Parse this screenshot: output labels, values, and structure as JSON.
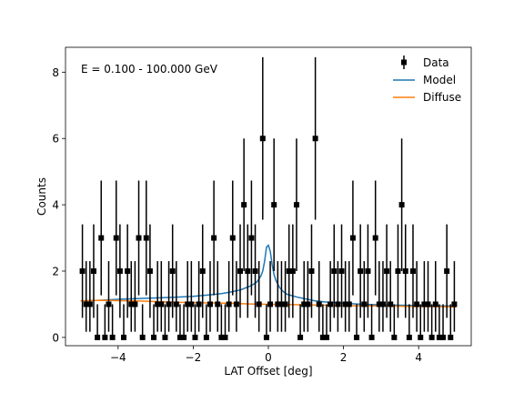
{
  "chart_data": {
    "type": "scatter",
    "xlabel": "LAT Offset [deg]",
    "ylabel": "Counts",
    "annotation": "E = 0.100 - 100.000 GeV",
    "xlim": [
      -5.4,
      5.4
    ],
    "ylim": [
      -0.25,
      8.75
    ],
    "xticks": [
      -4,
      -2,
      0,
      2,
      4
    ],
    "xtick_labels": [
      "−4",
      "−2",
      "0",
      "2",
      "4"
    ],
    "yticks": [
      0,
      2,
      4,
      6,
      8
    ],
    "ytick_labels": [
      "0",
      "2",
      "4",
      "6",
      "8"
    ],
    "legend_position": "top-right",
    "legend": [
      {
        "name": "Data",
        "marker": "errorbar-square",
        "color": "#000000"
      },
      {
        "name": "Model",
        "marker": "line",
        "color": "#1f77b4"
      },
      {
        "name": "Diffuse",
        "marker": "line",
        "color": "#ff7f0e"
      }
    ],
    "series": [
      {
        "name": "Data",
        "x": [
          -4.95,
          -4.85,
          -4.75,
          -4.65,
          -4.55,
          -4.45,
          -4.35,
          -4.25,
          -4.15,
          -4.05,
          -3.95,
          -3.85,
          -3.75,
          -3.65,
          -3.55,
          -3.45,
          -3.35,
          -3.25,
          -3.15,
          -3.05,
          -2.95,
          -2.85,
          -2.75,
          -2.65,
          -2.55,
          -2.45,
          -2.35,
          -2.25,
          -2.15,
          -2.05,
          -1.95,
          -1.85,
          -1.75,
          -1.65,
          -1.55,
          -1.45,
          -1.35,
          -1.25,
          -1.15,
          -1.05,
          -0.95,
          -0.85,
          -0.75,
          -0.65,
          -0.55,
          -0.45,
          -0.35,
          -0.25,
          -0.15,
          -0.05,
          0.05,
          0.15,
          0.25,
          0.35,
          0.45,
          0.55,
          0.65,
          0.75,
          0.85,
          0.95,
          1.05,
          1.15,
          1.25,
          1.35,
          1.45,
          1.55,
          1.65,
          1.75,
          1.85,
          1.95,
          2.05,
          2.15,
          2.25,
          2.35,
          2.45,
          2.55,
          2.65,
          2.75,
          2.85,
          2.95,
          3.05,
          3.15,
          3.25,
          3.35,
          3.45,
          3.55,
          3.65,
          3.75,
          3.85,
          3.95,
          4.05,
          4.15,
          4.25,
          4.35,
          4.45,
          4.55,
          4.65,
          4.75,
          4.85,
          4.95
        ],
        "values": [
          2,
          1,
          1,
          2,
          0,
          3,
          0,
          1,
          0,
          3,
          2,
          0,
          2,
          1,
          1,
          3,
          0,
          3,
          2,
          0,
          1,
          1,
          0,
          1,
          2,
          1,
          0,
          0,
          1,
          1,
          0,
          1,
          2,
          0,
          1,
          3,
          1,
          0,
          0,
          1,
          3,
          1,
          2,
          4,
          2,
          3,
          2,
          1,
          6,
          0,
          1,
          4,
          1,
          1,
          1,
          2,
          2,
          4,
          0,
          1,
          1,
          2,
          6,
          1,
          0,
          0,
          1,
          2,
          1,
          2,
          1,
          1,
          3,
          0,
          2,
          1,
          2,
          0,
          3,
          1,
          1,
          2,
          1,
          0,
          2,
          4,
          2,
          0,
          2,
          1,
          0,
          1,
          1,
          0,
          1,
          0,
          0,
          2,
          0,
          1
        ],
        "err_lo": [
          1.41,
          0.83,
          0.83,
          1.41,
          0,
          1.73,
          0,
          0.83,
          0,
          1.73,
          1.41,
          0,
          1.41,
          0.83,
          0.83,
          1.73,
          0,
          1.73,
          1.41,
          0,
          0.83,
          0.83,
          0,
          0.83,
          1.41,
          0.83,
          0,
          0,
          0.83,
          0.83,
          0,
          0.83,
          1.41,
          0,
          0.83,
          1.73,
          0.83,
          0,
          0,
          0.83,
          1.73,
          0.83,
          1.41,
          2,
          1.41,
          1.73,
          1.41,
          0.83,
          2.45,
          0,
          0.83,
          2,
          0.83,
          0.83,
          0.83,
          1.41,
          1.41,
          2,
          0,
          0.83,
          0.83,
          1.41,
          2.45,
          0.83,
          0,
          0,
          0.83,
          1.41,
          0.83,
          1.41,
          0.83,
          0.83,
          1.73,
          0,
          1.41,
          0.83,
          1.41,
          0,
          1.73,
          0.83,
          0.83,
          1.41,
          0.83,
          0,
          1.41,
          2,
          1.41,
          0,
          1.41,
          0.83,
          0,
          0.83,
          0.83,
          0,
          0.83,
          0,
          0,
          1.41,
          0,
          0.83
        ],
        "err_hi": [
          1.41,
          1.3,
          1.3,
          1.41,
          1.0,
          1.73,
          1.0,
          1.3,
          1.0,
          1.73,
          1.41,
          1.0,
          1.41,
          1.3,
          1.3,
          1.73,
          1.0,
          1.73,
          1.41,
          1.0,
          1.3,
          1.3,
          1.0,
          1.3,
          1.41,
          1.3,
          1.0,
          1.0,
          1.3,
          1.3,
          1.0,
          1.3,
          1.41,
          1.0,
          1.3,
          1.73,
          1.3,
          1.0,
          1.0,
          1.3,
          1.73,
          1.3,
          1.41,
          2,
          1.41,
          1.73,
          1.41,
          1.3,
          2.45,
          1.0,
          1.3,
          2,
          1.3,
          1.3,
          1.3,
          1.41,
          1.41,
          2,
          1.0,
          1.3,
          1.3,
          1.41,
          2.45,
          1.3,
          1.0,
          1.0,
          1.3,
          1.41,
          1.3,
          1.41,
          1.3,
          1.3,
          1.73,
          1.0,
          1.41,
          1.3,
          1.41,
          1.0,
          1.73,
          1.3,
          1.3,
          1.41,
          1.3,
          1.0,
          1.41,
          2,
          1.41,
          1.0,
          1.41,
          1.3,
          1.0,
          1.3,
          1.3,
          1.0,
          1.3,
          1.0,
          1.0,
          1.41,
          1.0,
          1.3
        ]
      },
      {
        "name": "Model",
        "x": [
          -5.0,
          -4.5,
          -4.0,
          -3.5,
          -3.0,
          -2.5,
          -2.0,
          -1.5,
          -1.25,
          -1.0,
          -0.75,
          -0.5,
          -0.4,
          -0.3,
          -0.2,
          -0.15,
          -0.1,
          -0.05,
          0.0,
          0.05,
          0.1,
          0.15,
          0.2,
          0.3,
          0.4,
          0.5,
          0.75,
          1.0,
          1.25,
          1.5,
          2.0,
          2.5,
          3.0,
          3.5,
          4.0,
          4.5,
          5.0
        ],
        "values": [
          1.1,
          1.12,
          1.15,
          1.17,
          1.19,
          1.21,
          1.24,
          1.29,
          1.32,
          1.37,
          1.43,
          1.54,
          1.6,
          1.68,
          1.85,
          2.0,
          2.3,
          2.72,
          2.78,
          2.6,
          2.2,
          1.9,
          1.72,
          1.5,
          1.38,
          1.3,
          1.22,
          1.16,
          1.1,
          1.07,
          1.03,
          1.0,
          0.98,
          0.97,
          0.96,
          0.95,
          0.95
        ]
      },
      {
        "name": "Diffuse",
        "x": [
          -5.0,
          -4.5,
          -4.0,
          -3.5,
          -3.0,
          -2.5,
          -2.0,
          -1.5,
          -1.0,
          -0.5,
          0.0,
          0.5,
          1.0,
          1.5,
          2.0,
          2.5,
          3.0,
          3.5,
          4.0,
          4.5,
          5.0
        ],
        "values": [
          1.1,
          1.12,
          1.11,
          1.1,
          1.08,
          1.06,
          1.05,
          1.04,
          1.03,
          1.01,
          1.0,
          0.99,
          0.98,
          0.97,
          0.96,
          0.95,
          0.95,
          0.94,
          0.93,
          0.93,
          0.92
        ]
      }
    ]
  }
}
